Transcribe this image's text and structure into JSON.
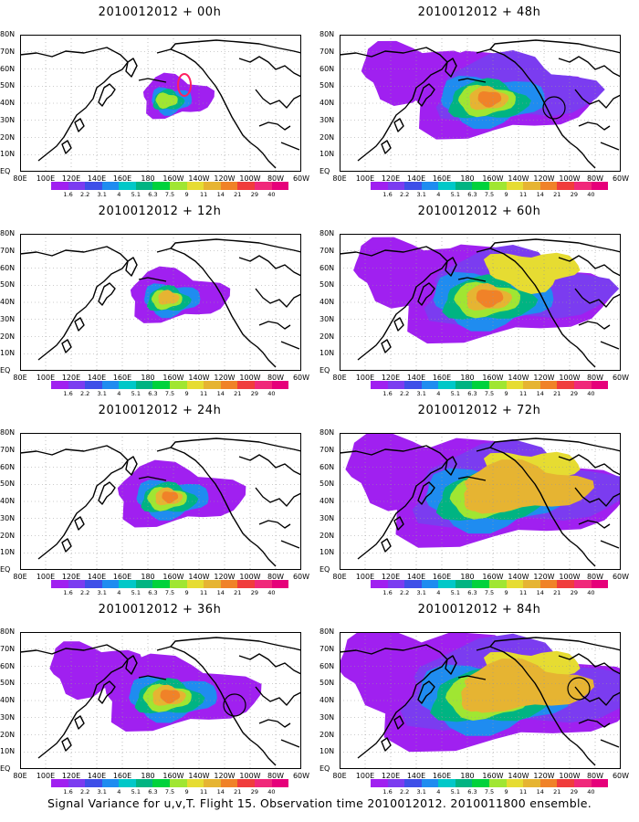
{
  "panels": [
    {
      "title": "2010012012 + 00h",
      "level": 0
    },
    {
      "title": "2010012012 + 48h",
      "level": 4
    },
    {
      "title": "2010012012 + 12h",
      "level": 1
    },
    {
      "title": "2010012012 + 60h",
      "level": 5
    },
    {
      "title": "2010012012 + 24h",
      "level": 2
    },
    {
      "title": "2010012012 + 72h",
      "level": 6
    },
    {
      "title": "2010012012 + 36h",
      "level": 3
    },
    {
      "title": "2010012012 + 84h",
      "level": 7
    }
  ],
  "lat_labels": [
    "80N",
    "70N",
    "60N",
    "50N",
    "40N",
    "30N",
    "20N",
    "10N",
    "EQ"
  ],
  "lon_labels": [
    "80E",
    "100E",
    "120E",
    "140E",
    "160E",
    "180",
    "160W",
    "140W",
    "120W",
    "100W",
    "80W",
    "60W"
  ],
  "colorbar": {
    "labels": [
      "1.6",
      "2.2",
      "3.1",
      "4",
      "5.1",
      "6.3",
      "7.5",
      "9",
      "11",
      "14",
      "21",
      "29",
      "40"
    ],
    "colors": [
      "#a020f0",
      "#7b3cf0",
      "#3e4fe8",
      "#1f8cf0",
      "#00c8c8",
      "#00b482",
      "#00d23c",
      "#a0e632",
      "#e6dc32",
      "#e6b432",
      "#f08228",
      "#f03c3c",
      "#f0287a",
      "#e6007a"
    ]
  },
  "footer": "Signal Variance for u,v,T. Flight 15. Observation time 2010012012. 2010011800 ensemble."
}
